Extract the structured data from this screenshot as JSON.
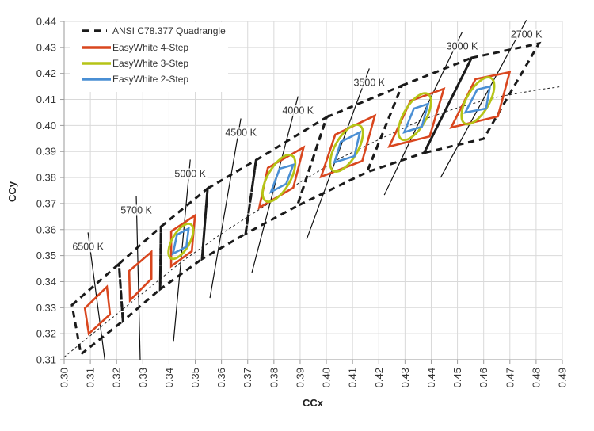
{
  "chart_data": {
    "type": "line",
    "title": "",
    "xlabel": "CCx",
    "ylabel": "CCy",
    "xlim": [
      0.3,
      0.49
    ],
    "ylim": [
      0.31,
      0.44
    ],
    "grid": true,
    "legend_position": "top-left",
    "x_ticks": [
      "0.30",
      "0.31",
      "0.32",
      "0.33",
      "0.34",
      "0.35",
      "0.36",
      "0.37",
      "0.38",
      "0.39",
      "0.40",
      "0.41",
      "0.42",
      "0.43",
      "0.44",
      "0.45",
      "0.46",
      "0.47",
      "0.48",
      "0.49"
    ],
    "y_ticks": [
      "0.31",
      "0.32",
      "0.33",
      "0.34",
      "0.35",
      "0.36",
      "0.37",
      "0.38",
      "0.39",
      "0.40",
      "0.41",
      "0.42",
      "0.43",
      "0.44"
    ],
    "legend": [
      {
        "label": "ANSI C78.377 Quadrangle",
        "color": "#1a1a1a",
        "style": "dashed"
      },
      {
        "label": "EasyWhite 4-Step",
        "color": "#d9461e",
        "style": "solid"
      },
      {
        "label": "EasyWhite 3-Step",
        "color": "#b5c416",
        "style": "solid"
      },
      {
        "label": "EasyWhite 2-Step",
        "color": "#4a8fd4",
        "style": "solid"
      }
    ],
    "colors": {
      "ansi": "#1a1a1a",
      "step4": "#d9461e",
      "step3": "#b5c416",
      "step2": "#4a8fd4",
      "grid": "#d9d9d9",
      "axis": "#9a9a9a"
    },
    "ansi_top": [
      [
        0.303,
        0.331
      ],
      [
        0.3209,
        0.3468
      ],
      [
        0.3369,
        0.3611
      ],
      [
        0.3547,
        0.3758
      ],
      [
        0.3732,
        0.3867
      ],
      [
        0.4001,
        0.4032
      ],
      [
        0.4288,
        0.4153
      ],
      [
        0.4554,
        0.426
      ],
      [
        0.4811,
        0.4315
      ]
    ],
    "ansi_bottom": [
      [
        0.3064,
        0.3121
      ],
      [
        0.3224,
        0.3249
      ],
      [
        0.3366,
        0.3371
      ],
      [
        0.3526,
        0.3487
      ],
      [
        0.3692,
        0.3584
      ],
      [
        0.3889,
        0.3691
      ],
      [
        0.4155,
        0.3821
      ],
      [
        0.4373,
        0.3895
      ],
      [
        0.46,
        0.3949
      ]
    ],
    "cct": [
      {
        "label": "6500 K",
        "line": [
          [
            0.3091,
            0.3589
          ],
          [
            0.3155,
            0.309
          ]
        ],
        "step4": [
          [
            0.3079,
            0.3298
          ],
          [
            0.3163,
            0.338
          ],
          [
            0.3175,
            0.3274
          ],
          [
            0.3094,
            0.32
          ]
        ]
      },
      {
        "label": "5700 K",
        "line": [
          [
            0.3275,
            0.3729
          ],
          [
            0.329,
            0.31
          ]
        ],
        "step4": [
          [
            0.3248,
            0.3441
          ],
          [
            0.3333,
            0.3514
          ],
          [
            0.3333,
            0.3411
          ],
          [
            0.3251,
            0.3328
          ]
        ]
      },
      {
        "label": "5000 K",
        "line": [
          [
            0.3481,
            0.3869
          ],
          [
            0.3417,
            0.3169
          ]
        ],
        "step4": [
          [
            0.3408,
            0.3593
          ],
          [
            0.3499,
            0.3654
          ],
          [
            0.3487,
            0.3517
          ],
          [
            0.3408,
            0.3459
          ]
        ],
        "step3": {
          "center": [
            0.3445,
            0.3555
          ],
          "a": 0.0075,
          "b": 0.0033
        },
        "step2": [
          [
            0.3415,
            0.3507
          ],
          [
            0.343,
            0.358
          ],
          [
            0.3475,
            0.3604
          ],
          [
            0.3466,
            0.3534
          ]
        ]
      },
      {
        "label": "4500 K",
        "line": [
          [
            0.3674,
            0.4027
          ],
          [
            0.3556,
            0.3337
          ]
        ],
        "step4": null
      },
      {
        "label": "4000 K",
        "line": [
          [
            0.3892,
            0.4112
          ],
          [
            0.3716,
            0.3435
          ]
        ],
        "step4": [
          [
            0.3777,
            0.3837
          ],
          [
            0.3913,
            0.3916
          ],
          [
            0.3874,
            0.3761
          ],
          [
            0.3744,
            0.3684
          ]
        ],
        "step3": {
          "center": [
            0.3819,
            0.3797
          ],
          "a": 0.01,
          "b": 0.0043
        },
        "step2": [
          [
            0.3789,
            0.3745
          ],
          [
            0.3822,
            0.3834
          ],
          [
            0.3874,
            0.3849
          ],
          [
            0.3847,
            0.3776
          ]
        ]
      },
      {
        "label": "3500 K",
        "line": [
          [
            0.4164,
            0.4219
          ],
          [
            0.3925,
            0.3563
          ]
        ],
        "step4": [
          [
            0.4034,
            0.3965
          ],
          [
            0.4185,
            0.4038
          ],
          [
            0.4137,
            0.3864
          ],
          [
            0.398,
            0.3803
          ]
        ],
        "step3": {
          "center": [
            0.4077,
            0.3913
          ],
          "a": 0.01,
          "b": 0.0043
        },
        "step2": [
          [
            0.4031,
            0.3858
          ],
          [
            0.4055,
            0.3937
          ],
          [
            0.4128,
            0.3974
          ],
          [
            0.4107,
            0.3882
          ]
        ]
      },
      {
        "label": "3000 K",
        "line": [
          [
            0.4518,
            0.4359
          ],
          [
            0.4221,
            0.3733
          ]
        ],
        "step4": [
          [
            0.4321,
            0.4095
          ],
          [
            0.4448,
            0.4141
          ],
          [
            0.4394,
            0.3958
          ],
          [
            0.424,
            0.3919
          ]
        ],
        "step3": {
          "center": [
            0.4337,
            0.4034
          ],
          "a": 0.01,
          "b": 0.0043
        },
        "step2": [
          [
            0.4297,
            0.3974
          ],
          [
            0.4334,
            0.4065
          ],
          [
            0.4388,
            0.4083
          ],
          [
            0.4364,
            0.3995
          ]
        ]
      },
      {
        "label": "2700 K",
        "line": [
          [
            0.4763,
            0.4405
          ],
          [
            0.4436,
            0.38
          ]
        ],
        "step4": [
          [
            0.4569,
            0.4178
          ],
          [
            0.4699,
            0.4205
          ],
          [
            0.4654,
            0.4035
          ],
          [
            0.4476,
            0.3992
          ]
        ],
        "step3": {
          "center": [
            0.4578,
            0.4095
          ],
          "a": 0.01,
          "b": 0.0043
        },
        "step2": [
          [
            0.453,
            0.405
          ],
          [
            0.4575,
            0.4138
          ],
          [
            0.4624,
            0.415
          ],
          [
            0.4609,
            0.4065
          ]
        ]
      }
    ],
    "planckian": [
      [
        0.3,
        0.311
      ],
      [
        0.315,
        0.3234
      ],
      [
        0.33,
        0.3356
      ],
      [
        0.345,
        0.3478
      ],
      [
        0.36,
        0.3584
      ],
      [
        0.375,
        0.3681
      ],
      [
        0.39,
        0.3782
      ],
      [
        0.405,
        0.3873
      ],
      [
        0.4207,
        0.3949
      ],
      [
        0.4358,
        0.4019
      ],
      [
        0.4509,
        0.4071
      ],
      [
        0.466,
        0.4111
      ],
      [
        0.4811,
        0.4138
      ],
      [
        0.49,
        0.415
      ]
    ]
  }
}
